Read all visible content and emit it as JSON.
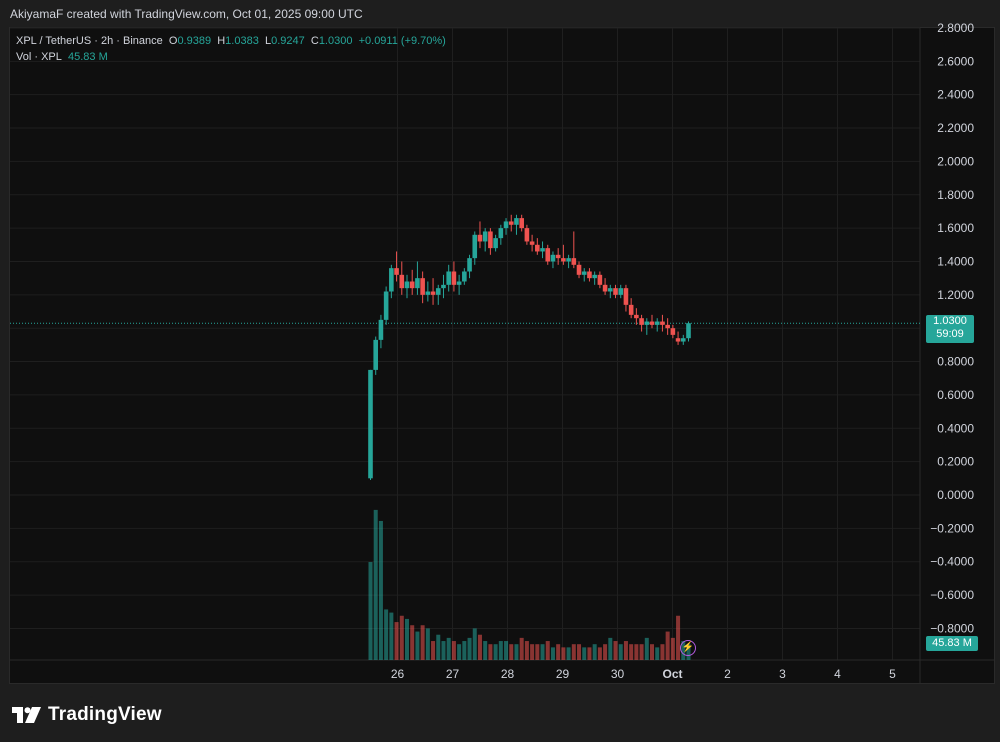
{
  "header": {
    "text": "AkiyamaF created with TradingView.com, Oct 01, 2025 09:00 UTC"
  },
  "legend": {
    "symbol": "XPL / TetherUS · 2h · Binance",
    "o_label": "O",
    "o_value": "0.9389",
    "h_label": "H",
    "h_value": "1.0383",
    "l_label": "L",
    "l_value": "0.9247",
    "c_label": "C",
    "c_value": "1.0300",
    "change": "+0.0911 (+9.70%)",
    "vol_label": "Vol · XPL",
    "vol_value": "45.83 M"
  },
  "price_tag": {
    "price": "1.0300",
    "countdown": "59:09"
  },
  "volume_tag": "45.83 M",
  "brand": {
    "name": "TradingView"
  },
  "colors": {
    "up": "#26a69a",
    "down": "#ef5350",
    "background": "#0f0f0f",
    "grid": "#1f1f1f",
    "text": "#d1d4dc"
  },
  "icons": {
    "logo": "tradingview-logo-icon",
    "alert": "lightning-icon"
  },
  "chart_data": {
    "type": "candlestick",
    "title": "XPL / TetherUS · 2h · Binance",
    "ylim": [
      -0.8,
      2.8
    ],
    "y_ticks": [
      "2.8000",
      "2.6000",
      "2.4000",
      "2.2000",
      "2.0000",
      "1.8000",
      "1.6000",
      "1.4000",
      "1.2000",
      "1.0000",
      "0.8000",
      "0.6000",
      "0.4000",
      "0.2000",
      "0.0000",
      "−0.2000",
      "−0.4000",
      "−0.6000",
      "−0.8000"
    ],
    "x_ticks": [
      "26",
      "27",
      "28",
      "29",
      "30",
      "Oct",
      "2",
      "3",
      "4",
      "5"
    ],
    "last_price": 1.03,
    "grid": true,
    "candles": [
      [
        0.1,
        0.75,
        0.09,
        0.75,
        62
      ],
      [
        0.75,
        0.95,
        0.72,
        0.93,
        95
      ],
      [
        0.93,
        1.08,
        0.88,
        1.05,
        88
      ],
      [
        1.05,
        1.25,
        1.02,
        1.22,
        32
      ],
      [
        1.22,
        1.38,
        1.18,
        1.36,
        30
      ],
      [
        1.36,
        1.46,
        1.28,
        1.32,
        24
      ],
      [
        1.32,
        1.4,
        1.2,
        1.24,
        28
      ],
      [
        1.24,
        1.32,
        1.18,
        1.28,
        26
      ],
      [
        1.28,
        1.35,
        1.2,
        1.24,
        22
      ],
      [
        1.24,
        1.4,
        1.2,
        1.3,
        18
      ],
      [
        1.3,
        1.34,
        1.15,
        1.2,
        22
      ],
      [
        1.2,
        1.28,
        1.16,
        1.22,
        20
      ],
      [
        1.22,
        1.3,
        1.14,
        1.2,
        12
      ],
      [
        1.2,
        1.26,
        1.14,
        1.24,
        16
      ],
      [
        1.24,
        1.32,
        1.18,
        1.26,
        12
      ],
      [
        1.26,
        1.38,
        1.22,
        1.34,
        14
      ],
      [
        1.34,
        1.4,
        1.22,
        1.26,
        12
      ],
      [
        1.26,
        1.32,
        1.2,
        1.28,
        10
      ],
      [
        1.28,
        1.36,
        1.26,
        1.34,
        12
      ],
      [
        1.34,
        1.44,
        1.3,
        1.42,
        14
      ],
      [
        1.42,
        1.58,
        1.38,
        1.56,
        20
      ],
      [
        1.56,
        1.64,
        1.48,
        1.52,
        16
      ],
      [
        1.52,
        1.6,
        1.46,
        1.58,
        12
      ],
      [
        1.58,
        1.6,
        1.44,
        1.48,
        10
      ],
      [
        1.48,
        1.56,
        1.46,
        1.54,
        10
      ],
      [
        1.54,
        1.62,
        1.5,
        1.6,
        12
      ],
      [
        1.6,
        1.66,
        1.56,
        1.64,
        12
      ],
      [
        1.64,
        1.68,
        1.58,
        1.62,
        10
      ],
      [
        1.62,
        1.68,
        1.56,
        1.66,
        10
      ],
      [
        1.66,
        1.68,
        1.58,
        1.6,
        14
      ],
      [
        1.6,
        1.62,
        1.5,
        1.52,
        12
      ],
      [
        1.52,
        1.56,
        1.46,
        1.5,
        10
      ],
      [
        1.5,
        1.54,
        1.44,
        1.46,
        10
      ],
      [
        1.46,
        1.52,
        1.42,
        1.48,
        10
      ],
      [
        1.48,
        1.5,
        1.38,
        1.4,
        12
      ],
      [
        1.4,
        1.46,
        1.36,
        1.44,
        8
      ],
      [
        1.44,
        1.48,
        1.38,
        1.42,
        10
      ],
      [
        1.42,
        1.5,
        1.38,
        1.4,
        8
      ],
      [
        1.4,
        1.44,
        1.36,
        1.42,
        8
      ],
      [
        1.42,
        1.58,
        1.36,
        1.38,
        10
      ],
      [
        1.38,
        1.4,
        1.3,
        1.32,
        10
      ],
      [
        1.32,
        1.36,
        1.28,
        1.34,
        8
      ],
      [
        1.34,
        1.36,
        1.28,
        1.3,
        8
      ],
      [
        1.3,
        1.34,
        1.26,
        1.32,
        10
      ],
      [
        1.32,
        1.34,
        1.24,
        1.26,
        8
      ],
      [
        1.26,
        1.3,
        1.2,
        1.22,
        10
      ],
      [
        1.22,
        1.26,
        1.18,
        1.24,
        14
      ],
      [
        1.24,
        1.26,
        1.18,
        1.2,
        12
      ],
      [
        1.2,
        1.26,
        1.18,
        1.24,
        10
      ],
      [
        1.24,
        1.26,
        1.1,
        1.14,
        12
      ],
      [
        1.14,
        1.18,
        1.06,
        1.08,
        10
      ],
      [
        1.08,
        1.12,
        1.02,
        1.06,
        10
      ],
      [
        1.06,
        1.08,
        0.98,
        1.02,
        10
      ],
      [
        1.02,
        1.06,
        0.96,
        1.04,
        14
      ],
      [
        1.04,
        1.08,
        1.0,
        1.02,
        10
      ],
      [
        1.02,
        1.06,
        0.98,
        1.04,
        8
      ],
      [
        1.04,
        1.08,
        0.98,
        1.02,
        10
      ],
      [
        1.02,
        1.06,
        0.96,
        1.0,
        18
      ],
      [
        1.0,
        1.02,
        0.94,
        0.96,
        14
      ],
      [
        0.94,
        0.98,
        0.9,
        0.92,
        28
      ],
      [
        0.92,
        0.96,
        0.9,
        0.94,
        12
      ],
      [
        0.94,
        1.04,
        0.92,
        1.03,
        10
      ]
    ]
  }
}
